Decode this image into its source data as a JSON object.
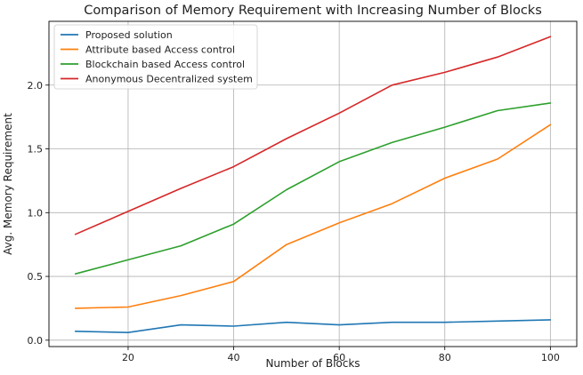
{
  "chart_data": {
    "type": "line",
    "title": "Comparison of Memory Requirement with Increasing Number of Blocks",
    "xlabel": "Number of Blocks",
    "ylabel": "Avg. Memory Requirement",
    "xlim": [
      5,
      105
    ],
    "ylim": [
      -0.05,
      2.5
    ],
    "xticks": [
      20,
      40,
      60,
      80,
      100
    ],
    "yticks": [
      0.0,
      0.5,
      1.0,
      1.5,
      2.0
    ],
    "xtick_labels": [
      "20",
      "40",
      "60",
      "80",
      "100"
    ],
    "ytick_labels": [
      "0.0",
      "0.5",
      "1.0",
      "1.5",
      "2.0"
    ],
    "grid": true,
    "legend_position": "top-left",
    "x": [
      10,
      20,
      30,
      40,
      50,
      60,
      70,
      80,
      90,
      100
    ],
    "series": [
      {
        "name": "Proposed solution",
        "color": "#1f77b4",
        "values": [
          0.07,
          0.06,
          0.12,
          0.11,
          0.14,
          0.12,
          0.14,
          0.14,
          0.15,
          0.16
        ]
      },
      {
        "name": "Attribute based Access control",
        "color": "#ff7f0e",
        "values": [
          0.25,
          0.26,
          0.35,
          0.46,
          0.75,
          0.92,
          1.07,
          1.27,
          1.42,
          1.69
        ]
      },
      {
        "name": "Blockchain based Access control",
        "color": "#2ca02c",
        "values": [
          0.52,
          0.63,
          0.74,
          0.91,
          1.18,
          1.4,
          1.55,
          1.67,
          1.8,
          1.86
        ]
      },
      {
        "name": "Anonymous Decentralized system",
        "color": "#d62728",
        "values": [
          0.83,
          1.01,
          1.19,
          1.36,
          1.58,
          1.78,
          2.0,
          2.1,
          2.22,
          2.38
        ]
      }
    ]
  }
}
